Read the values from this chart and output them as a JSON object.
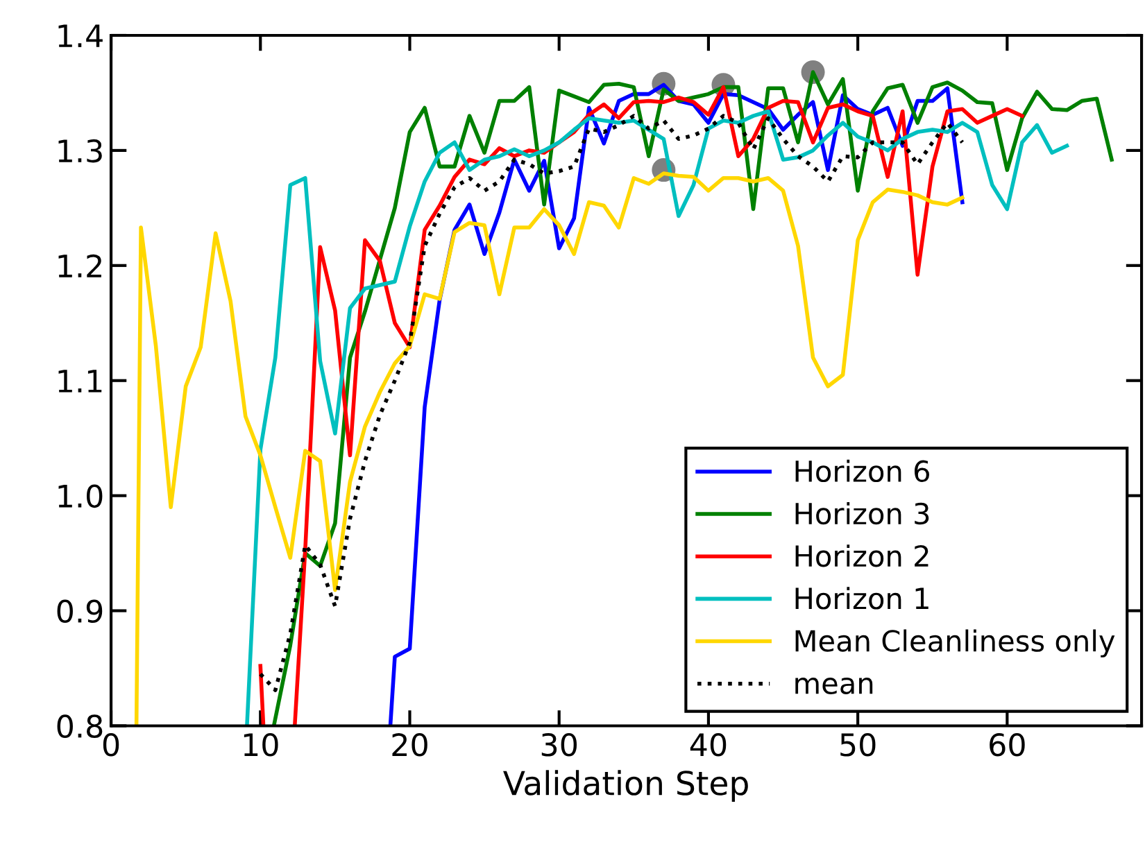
{
  "chart_data": {
    "type": "line",
    "xlabel": "Validation Step",
    "xlim": [
      0,
      69
    ],
    "xticks": [
      0,
      10,
      20,
      30,
      40,
      50,
      60
    ],
    "ylim": [
      0.8,
      1.4
    ],
    "yticks": [
      {
        "value": 0.8,
        "label": "0.8"
      },
      {
        "value": 0.9,
        "label": "0.9"
      },
      {
        "value": 1.0,
        "label": "1.0"
      },
      {
        "value": 1.1,
        "label": "1.1"
      },
      {
        "value": 1.2,
        "label": "1.2"
      },
      {
        "value": 1.3,
        "label": "1.3"
      },
      {
        "value": 1.4,
        "label": "1.4"
      }
    ],
    "grid": false,
    "legend": "bottom right",
    "marker": "none",
    "series": [
      {
        "name": "Horizon 6",
        "color": "#0000ff",
        "line_style": "solid",
        "x": [
          18.7,
          19,
          20,
          21,
          22,
          23,
          24,
          25,
          26,
          27,
          28,
          29,
          30,
          31,
          32,
          33,
          34,
          35,
          36,
          37,
          38,
          39,
          40,
          41,
          42,
          43,
          44,
          45,
          46,
          47,
          48,
          49,
          50,
          51,
          52,
          53,
          54,
          55,
          56,
          57
        ],
        "values": [
          0.8,
          0.86,
          0.867,
          1.077,
          1.17,
          1.231,
          1.253,
          1.21,
          1.246,
          1.292,
          1.265,
          1.291,
          1.215,
          1.241,
          1.337,
          1.306,
          1.343,
          1.349,
          1.349,
          1.357,
          1.343,
          1.34,
          1.324,
          1.349,
          1.348,
          1.342,
          1.336,
          1.318,
          1.331,
          1.342,
          1.283,
          1.348,
          1.336,
          1.331,
          1.337,
          1.304,
          1.343,
          1.343,
          1.354,
          1.255
        ]
      },
      {
        "name": "Horizon 3",
        "color": "#008000",
        "line_style": "solid",
        "x": [
          10.9,
          12,
          13,
          14,
          15,
          16,
          17,
          18,
          19,
          20,
          21,
          22,
          23,
          24,
          25,
          26,
          27,
          28,
          29,
          30,
          31,
          32,
          33,
          34,
          35,
          36,
          37,
          38,
          39,
          40,
          41,
          42,
          43,
          44,
          45,
          46,
          47,
          48,
          49,
          50,
          51,
          52,
          53,
          54,
          55,
          56,
          57,
          58,
          59,
          60,
          61,
          62,
          63,
          64,
          65,
          66,
          67
        ],
        "values": [
          0.8,
          0.87,
          0.95,
          0.939,
          0.976,
          1.12,
          1.16,
          1.205,
          1.25,
          1.316,
          1.337,
          1.286,
          1.286,
          1.33,
          1.298,
          1.343,
          1.343,
          1.355,
          1.253,
          1.352,
          1.347,
          1.342,
          1.357,
          1.358,
          1.355,
          1.295,
          1.353,
          1.343,
          1.346,
          1.349,
          1.355,
          1.355,
          1.249,
          1.354,
          1.354,
          1.307,
          1.368,
          1.34,
          1.362,
          1.265,
          1.334,
          1.354,
          1.357,
          1.324,
          1.355,
          1.359,
          1.352,
          1.342,
          1.341,
          1.283,
          1.328,
          1.351,
          1.336,
          1.335,
          1.343,
          1.345,
          1.292
        ]
      },
      {
        "name": "Horizon 2",
        "color": "#ff0000",
        "line_style": "solid",
        "x": [
          10,
          10.2,
          11,
          12.3,
          13,
          14,
          15,
          16,
          17,
          18,
          19,
          20,
          21,
          22,
          23,
          24,
          25,
          26,
          27,
          28,
          29,
          30,
          31,
          32,
          33,
          34,
          35,
          36,
          37,
          38,
          39,
          40,
          41,
          42,
          43,
          44,
          45,
          46,
          47,
          48,
          49,
          50,
          51,
          52,
          53,
          54,
          55,
          56,
          57,
          58,
          59,
          60,
          61
        ],
        "values": [
          0.852,
          0.8,
          null,
          0.8,
          0.953,
          1.216,
          1.161,
          1.035,
          1.222,
          1.204,
          1.15,
          1.129,
          1.231,
          1.252,
          1.277,
          1.292,
          1.288,
          1.302,
          1.295,
          1.3,
          1.298,
          1.307,
          1.316,
          1.331,
          1.34,
          1.328,
          1.342,
          1.343,
          1.342,
          1.346,
          1.342,
          1.331,
          1.355,
          1.295,
          1.31,
          1.337,
          1.343,
          1.342,
          1.307,
          1.337,
          1.34,
          1.334,
          1.33,
          1.277,
          1.334,
          1.192,
          1.286,
          1.334,
          1.336,
          1.324,
          1.33,
          1.336,
          1.33
        ]
      },
      {
        "name": "Horizon 1",
        "color": "#00bfbf",
        "line_style": "solid",
        "x": [
          9.1,
          10,
          11,
          12,
          13,
          14,
          15,
          16,
          17,
          18,
          19,
          20,
          21,
          22,
          23,
          24,
          25,
          26,
          27,
          28,
          29,
          30,
          31,
          32,
          33,
          34,
          35,
          36,
          37,
          38,
          39,
          40,
          41,
          42,
          43,
          44,
          45,
          46,
          47,
          48,
          49,
          50,
          51,
          52,
          53,
          54,
          55,
          56,
          57,
          58,
          59,
          60,
          61,
          62,
          63,
          64
        ],
        "values": [
          0.8,
          1.04,
          1.12,
          1.27,
          1.276,
          1.117,
          1.054,
          1.163,
          1.18,
          1.183,
          1.186,
          1.234,
          1.273,
          1.298,
          1.307,
          1.283,
          1.292,
          1.295,
          1.301,
          1.295,
          1.3,
          1.307,
          1.318,
          1.328,
          1.326,
          1.324,
          1.326,
          1.318,
          1.31,
          1.243,
          1.27,
          1.319,
          1.326,
          1.324,
          1.33,
          1.334,
          1.292,
          1.294,
          1.3,
          1.313,
          1.324,
          1.312,
          1.307,
          1.3,
          1.31,
          1.316,
          1.318,
          1.316,
          1.324,
          1.316,
          1.27,
          1.249,
          1.307,
          1.322,
          1.298,
          1.304
        ]
      },
      {
        "name": "Mean Cleanliness only",
        "color": "#ffd700",
        "line_style": "solid",
        "x": [
          1.7,
          2,
          3,
          4,
          5,
          6,
          7,
          8,
          9,
          10,
          11,
          12,
          13,
          14,
          15,
          16,
          17,
          18,
          19,
          20,
          21,
          22,
          23,
          24,
          25,
          26,
          27,
          28,
          29,
          30,
          31,
          32,
          33,
          34,
          35,
          36,
          37,
          38,
          39,
          40,
          41,
          42,
          43,
          44,
          45,
          46,
          47,
          48,
          49,
          50,
          51,
          52,
          53,
          54,
          55,
          56,
          57
        ],
        "values": [
          0.8,
          1.233,
          1.13,
          0.99,
          1.095,
          1.129,
          1.228,
          1.169,
          1.069,
          1.035,
          0.99,
          0.946,
          1.039,
          1.03,
          0.918,
          1.012,
          1.06,
          1.09,
          1.115,
          1.13,
          1.175,
          1.171,
          1.229,
          1.237,
          1.235,
          1.175,
          1.233,
          1.233,
          1.249,
          1.235,
          1.21,
          1.255,
          1.252,
          1.233,
          1.276,
          1.271,
          1.28,
          1.278,
          1.277,
          1.265,
          1.276,
          1.276,
          1.273,
          1.276,
          1.265,
          1.217,
          1.12,
          1.095,
          1.105,
          1.222,
          1.255,
          1.266,
          1.264,
          1.261,
          1.255,
          1.253,
          1.259
        ]
      },
      {
        "name": "mean",
        "color": "#000000",
        "line_style": "dotted",
        "x": [
          10,
          11,
          12,
          13,
          14,
          15,
          16,
          17,
          18,
          19,
          20,
          21,
          22,
          23,
          24,
          25,
          26,
          27,
          28,
          29,
          30,
          31,
          32,
          33,
          34,
          35,
          36,
          37,
          38,
          39,
          40,
          41,
          42,
          43,
          44,
          45,
          46,
          47,
          48,
          49,
          50,
          51,
          52,
          53,
          54,
          55,
          56,
          57
        ],
        "values": [
          0.845,
          0.831,
          0.88,
          0.957,
          0.94,
          0.904,
          0.98,
          1.03,
          1.07,
          1.1,
          1.133,
          1.217,
          1.245,
          1.268,
          1.276,
          1.265,
          1.273,
          1.292,
          1.288,
          1.28,
          1.282,
          1.286,
          1.319,
          1.316,
          1.322,
          1.33,
          1.319,
          1.326,
          1.31,
          1.313,
          1.319,
          1.33,
          1.324,
          1.301,
          1.328,
          1.31,
          1.295,
          1.286,
          1.273,
          1.295,
          1.294,
          1.307,
          1.307,
          1.307,
          1.288,
          1.307,
          1.324,
          1.307
        ]
      },
      {
        "type": "scatter",
        "color": "#808080",
        "marker": "circle",
        "x": [
          37,
          41,
          47,
          37
        ],
        "values": [
          1.358,
          1.357,
          1.368,
          1.283
        ]
      }
    ]
  }
}
